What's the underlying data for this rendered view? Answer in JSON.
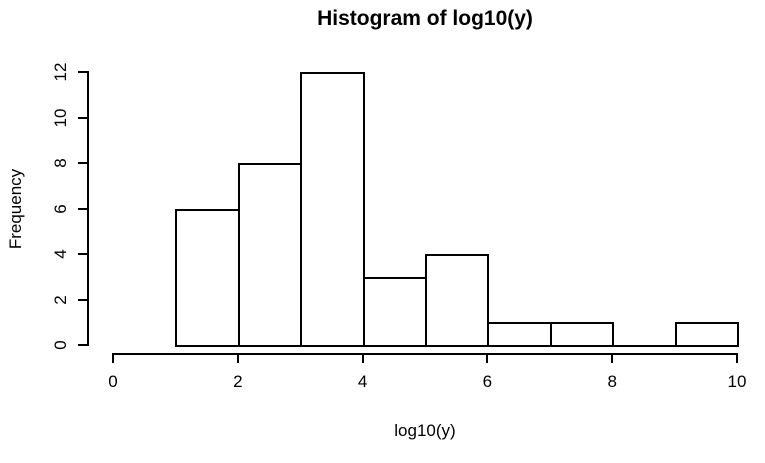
{
  "chart_data": {
    "type": "bar",
    "subtype": "histogram",
    "title": "Histogram of log10(y)",
    "xlabel": "log10(y)",
    "ylabel": "Frequency",
    "breaks": [
      1,
      2,
      3,
      4,
      5,
      6,
      7,
      8,
      9,
      10
    ],
    "counts": [
      6,
      8,
      12,
      3,
      4,
      1,
      1,
      0,
      1
    ],
    "x_ticks": [
      "0",
      "2",
      "4",
      "6",
      "8",
      "10"
    ],
    "x_tick_values": [
      0,
      2,
      4,
      6,
      8,
      10
    ],
    "y_ticks": [
      "0",
      "2",
      "4",
      "6",
      "8",
      "10",
      "12"
    ],
    "y_tick_values": [
      0,
      2,
      4,
      6,
      8,
      10,
      12
    ],
    "xlim": [
      0,
      10
    ],
    "ylim": [
      0,
      12
    ],
    "grid": "off",
    "legend": "none",
    "bar_fill": "#ffffff",
    "line_color": "#000000",
    "background": "#ffffff"
  }
}
